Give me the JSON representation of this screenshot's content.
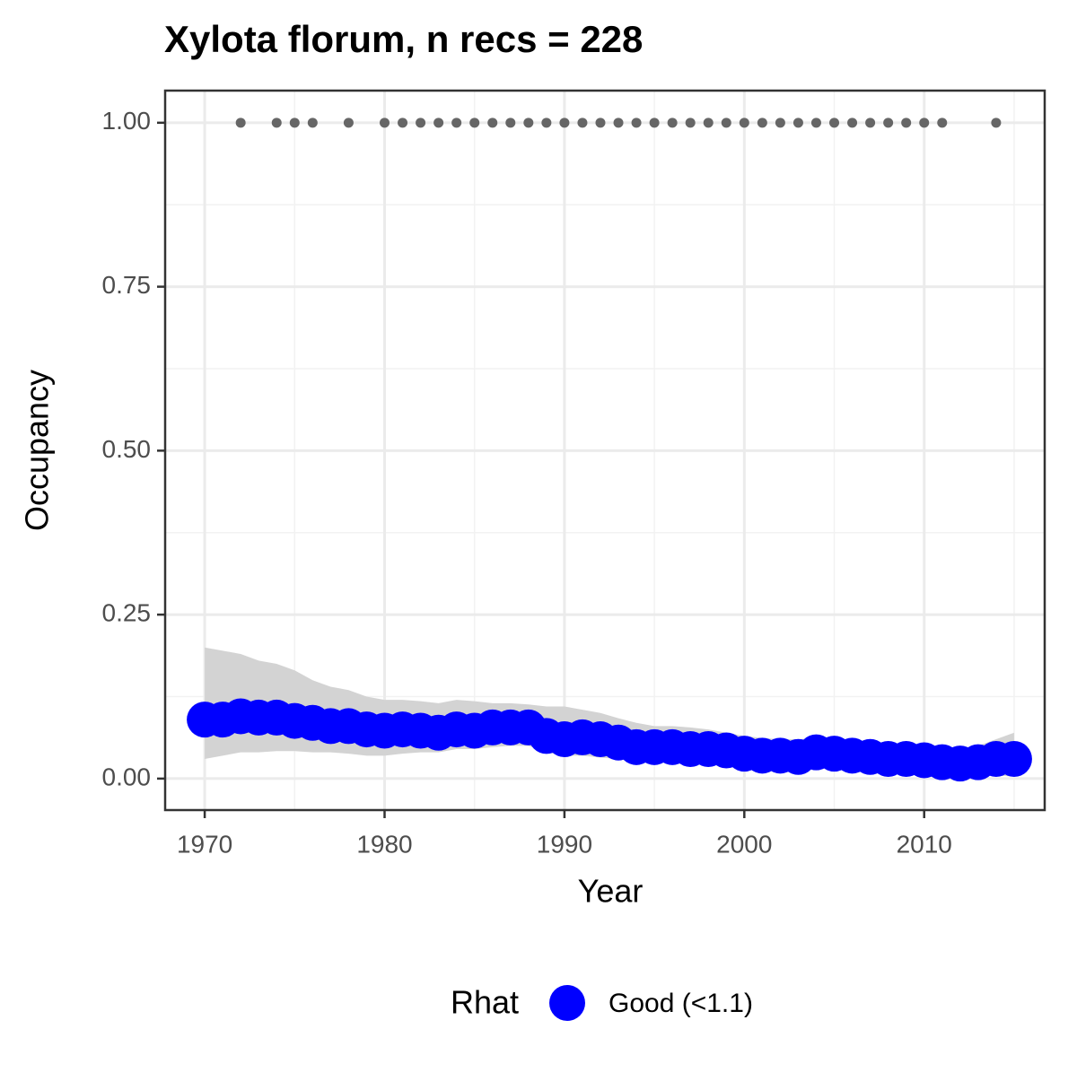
{
  "chart_data": {
    "type": "line",
    "title": "Xylota florum, n recs = 228",
    "x_label": "Year",
    "y_label": "Occupancy",
    "x": [
      1970,
      1971,
      1972,
      1973,
      1974,
      1975,
      1976,
      1977,
      1978,
      1979,
      1980,
      1981,
      1982,
      1983,
      1984,
      1985,
      1986,
      1987,
      1988,
      1989,
      1990,
      1991,
      1992,
      1993,
      1994,
      1995,
      1996,
      1997,
      1998,
      1999,
      2000,
      2001,
      2002,
      2003,
      2004,
      2005,
      2006,
      2007,
      2008,
      2009,
      2010,
      2011,
      2012,
      2013,
      2014,
      2015
    ],
    "values": [
      0.09,
      0.09,
      0.095,
      0.093,
      0.093,
      0.088,
      0.085,
      0.08,
      0.08,
      0.075,
      0.073,
      0.075,
      0.073,
      0.07,
      0.075,
      0.073,
      0.078,
      0.078,
      0.078,
      0.065,
      0.06,
      0.063,
      0.06,
      0.055,
      0.048,
      0.048,
      0.048,
      0.045,
      0.045,
      0.043,
      0.038,
      0.035,
      0.035,
      0.033,
      0.04,
      0.038,
      0.035,
      0.033,
      0.03,
      0.03,
      0.028,
      0.025,
      0.023,
      0.025,
      0.03,
      0.03
    ],
    "upper": [
      0.2,
      0.195,
      0.19,
      0.18,
      0.175,
      0.165,
      0.15,
      0.14,
      0.135,
      0.125,
      0.12,
      0.12,
      0.118,
      0.115,
      0.12,
      0.118,
      0.115,
      0.115,
      0.113,
      0.11,
      0.11,
      0.105,
      0.1,
      0.092,
      0.085,
      0.08,
      0.08,
      0.078,
      0.075,
      0.07,
      0.065,
      0.062,
      0.06,
      0.06,
      0.062,
      0.06,
      0.058,
      0.055,
      0.052,
      0.05,
      0.048,
      0.045,
      0.045,
      0.05,
      0.06,
      0.07
    ],
    "lower": [
      0.03,
      0.035,
      0.04,
      0.04,
      0.042,
      0.042,
      0.04,
      0.04,
      0.038,
      0.035,
      0.035,
      0.038,
      0.04,
      0.04,
      0.045,
      0.045,
      0.048,
      0.05,
      0.05,
      0.04,
      0.035,
      0.035,
      0.032,
      0.03,
      0.025,
      0.025,
      0.025,
      0.022,
      0.022,
      0.02,
      0.018,
      0.015,
      0.015,
      0.012,
      0.018,
      0.018,
      0.015,
      0.012,
      0.01,
      0.01,
      0.008,
      0.007,
      0.005,
      0.005,
      0.005,
      0.003
    ],
    "records_x": [
      1972,
      1974,
      1975,
      1976,
      1978,
      1980,
      1981,
      1982,
      1983,
      1984,
      1985,
      1986,
      1987,
      1988,
      1989,
      1990,
      1991,
      1992,
      1993,
      1994,
      1995,
      1996,
      1997,
      1998,
      1999,
      2000,
      2001,
      2002,
      2003,
      2004,
      2005,
      2006,
      2007,
      2008,
      2009,
      2010,
      2011,
      2014
    ],
    "records_values": [
      1,
      1,
      1,
      1,
      1,
      1,
      1,
      1,
      1,
      1,
      1,
      1,
      1,
      1,
      1,
      1,
      1,
      1,
      1,
      1,
      1,
      1,
      1,
      1,
      1,
      1,
      1,
      1,
      1,
      1,
      1,
      1,
      1,
      1,
      1,
      1,
      1,
      1
    ],
    "color": "#0000ff",
    "ribbon_color": "#d3d3d3",
    "records_color": "#666666",
    "legend_title": "Rhat",
    "legend_entry": "Good (<1.1)",
    "legend_position": "bottom",
    "xlim": [
      1967.8,
      2016.7
    ],
    "ylim": [
      -0.048,
      1.049
    ],
    "xticks": [
      1970,
      1980,
      1990,
      2000,
      2010
    ],
    "xminor": [
      1975,
      1985,
      1995,
      2005,
      2015
    ],
    "yticks": [
      {
        "value": 0,
        "label": "0.00"
      },
      {
        "value": 0.25,
        "label": "0.25"
      },
      {
        "value": 0.5,
        "label": "0.50"
      },
      {
        "value": 0.75,
        "label": "0.75"
      },
      {
        "value": 1,
        "label": "1.00"
      }
    ],
    "yminor": [
      0.125,
      0.375,
      0.625,
      0.875
    ],
    "grid": true
  }
}
